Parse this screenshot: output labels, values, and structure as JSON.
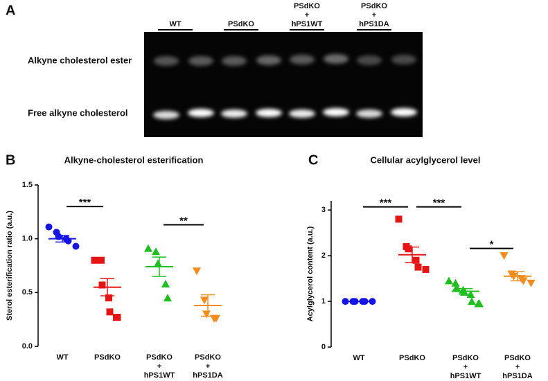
{
  "panel_labels": [
    "A",
    "B",
    "C"
  ],
  "gel": {
    "lane_groups": [
      "WT",
      "PSdKO",
      "PSdKO\n+\nhPS1WT",
      "PSdKO\n+\nhPS1DA"
    ],
    "rows": [
      "Alkyne cholesterol ester",
      "Free alkyne cholesterol"
    ]
  },
  "chart_data": [
    {
      "type": "dot",
      "title": "Alkyne-cholesterol esterification",
      "ylabel": "Sterol esterification ratio (a.u.)",
      "categories": [
        "WT",
        "PSdKO",
        "PSdKO\n+\nhPS1WT",
        "PSdKO\n+\nhPS1DA"
      ],
      "colors": [
        "#1515e6",
        "#e61515",
        "#1fbf1f",
        "#f28c1c"
      ],
      "markers": [
        "circle",
        "square",
        "triangle",
        "triangle-down"
      ],
      "points": [
        [
          1.11,
          1.06,
          1.02,
          1.0,
          0.98,
          0.93
        ],
        [
          0.8,
          0.8,
          0.57,
          0.45,
          0.32,
          0.27,
          0.27
        ],
        [
          0.91,
          0.88,
          0.77,
          0.58,
          0.45
        ],
        [
          0.7,
          0.43,
          0.3,
          0.26,
          0.26
        ]
      ],
      "means": [
        1.0,
        0.55,
        0.74,
        0.38
      ],
      "sems": [
        0.03,
        0.08,
        0.09,
        0.1
      ],
      "annotations": [
        {
          "text": "***",
          "from": 0,
          "to": 1,
          "y": 1.3
        },
        {
          "text": "**",
          "from": 2,
          "to": 3,
          "y": 1.13
        }
      ],
      "ylim": [
        0,
        1.5
      ],
      "yticks": [
        {
          "value": 0,
          "label": "0.0"
        },
        {
          "value": 0.5,
          "label": "0.5"
        },
        {
          "value": 1,
          "label": "1.0"
        },
        {
          "value": 1.5,
          "label": "1.5"
        }
      ]
    },
    {
      "type": "dot",
      "title": "Cellular acylglycerol level",
      "ylabel": "Acylglycerol content (a.u.)",
      "categories": [
        "WT",
        "PSdKO",
        "PSdKO\n+\nhPS1WT",
        "PSdKO\n+\nhPS1DA"
      ],
      "colors": [
        "#1515e6",
        "#e61515",
        "#1fbf1f",
        "#f28c1c"
      ],
      "markers": [
        "circle",
        "square",
        "triangle",
        "triangle-down"
      ],
      "points": [
        [
          1,
          1,
          1,
          1,
          1,
          1
        ],
        [
          2.8,
          2.2,
          2.15,
          1.9,
          1.75,
          1.7
        ],
        [
          1.45,
          1.4,
          1.3,
          1.25,
          1.2,
          1.15,
          1.0,
          0.95,
          0.95
        ],
        [
          2.0,
          1.6,
          1.55,
          1.5,
          1.45,
          1.4
        ]
      ],
      "means": [
        1.0,
        2.02,
        1.22,
        1.55
      ],
      "sems": [
        0,
        0.17,
        0.06,
        0.1
      ],
      "annotations": [
        {
          "text": "***",
          "from": 0,
          "to": 1,
          "y": 3.07
        },
        {
          "text": "***",
          "from": 1,
          "to": 2,
          "y": 3.07
        },
        {
          "text": "*",
          "from": 2,
          "to": 3,
          "y": 2.16
        }
      ],
      "ylim": [
        0,
        3.2
      ],
      "yticks": [
        0,
        1,
        2,
        3
      ]
    }
  ]
}
